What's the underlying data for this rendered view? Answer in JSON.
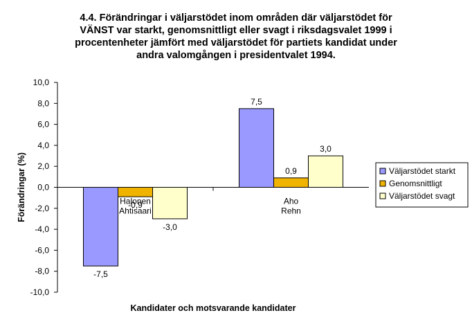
{
  "chart_data": {
    "type": "bar",
    "title_lines": [
      "4.4. Förändringar i väljarstödet inom områden där väljarstödet för",
      "VÄNST var starkt, genomsnittligt eller svagt i riksdagsvalet 1999 i",
      "procentenheter jämfört med väljarstödet för partiets kandidat under",
      "andra valomgången i presidentvalet 1994."
    ],
    "xlabel": "Kandidater och motsvarande kandidater",
    "ylabel": "Förändringar (%)",
    "ylim": [
      -10,
      10
    ],
    "yticks": [
      10,
      8,
      6,
      4,
      2,
      0,
      -2,
      -4,
      -6,
      -8,
      -10
    ],
    "ytick_labels": [
      "10,0",
      "8,0",
      "6,0",
      "4,0",
      "2,0",
      "0,0",
      "-2,0",
      "-4,0",
      "-6,0",
      "-8,0",
      "-10,0"
    ],
    "grid": false,
    "legend_position": "right",
    "categories": [
      [
        "Halonen",
        "Ahtisaari"
      ],
      [
        "Aho",
        "Rehn"
      ]
    ],
    "series": [
      {
        "name": "Väljarstödet starkt",
        "color": "#9999ff",
        "values": [
          -7.5,
          7.5
        ],
        "labels": [
          "-7,5",
          "7,5"
        ]
      },
      {
        "name": "Genomsnittligt",
        "color": "#f0b400",
        "values": [
          -0.9,
          0.9
        ],
        "labels": [
          "-0,9",
          "0,9"
        ]
      },
      {
        "name": "Väljarstödet svagt",
        "color": "#ffffcc",
        "values": [
          -3.0,
          3.0
        ],
        "labels": [
          "-3,0",
          "3,0"
        ]
      }
    ]
  }
}
